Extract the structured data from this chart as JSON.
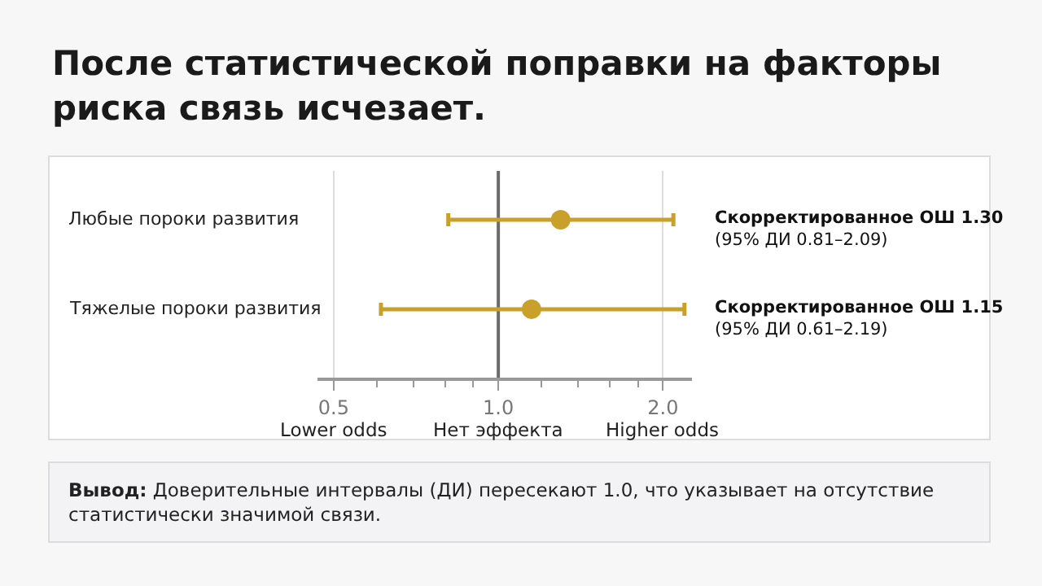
{
  "chart_data": {
    "type": "scatter",
    "orientation": "horizontal",
    "title": "После статистической поправки на факторы\nриска связь исчезает.",
    "categories": [
      "Любые пороки развития",
      "Тяжелые пороки развития"
    ],
    "values": [
      1.3,
      1.15
    ],
    "errors": [
      [
        0.81,
        2.09
      ],
      [
        0.61,
        2.19
      ]
    ],
    "color": "#c9a12a",
    "marker": "circle",
    "value_labels": [
      "Скорректированное ОШ 1.30\n(95% ДИ 0.81–2.09)",
      "Скорректированное ОШ 1.15\n(95% ДИ 0.61–2.19)"
    ],
    "log": "x",
    "xlim": [
      0.467,
      2.26
    ],
    "xticks": [
      0.5,
      {
        "value": 0.6,
        "label": null
      },
      {
        "value": 0.7,
        "label": null
      },
      {
        "value": 0.8,
        "label": null
      },
      {
        "value": 0.9,
        "label": null
      },
      {
        "value": 1,
        "label": "1.0"
      },
      {
        "value": 1.2,
        "label": null
      },
      {
        "value": 1.4,
        "label": null
      },
      {
        "value": 1.6,
        "label": null
      },
      {
        "value": 1.8,
        "label": null
      },
      {
        "value": 2,
        "label": "2.0"
      }
    ],
    "grid": "x",
    "ref_lines": [
      {
        "axis": "x",
        "value": 1,
        "color": "#6b6b6b"
      }
    ],
    "tick_labels": "x",
    "annotations": [
      "Lower odds",
      "Нет эффекта",
      "Higher odds",
      "Вывод: Доверительные интервалы (ДИ) пересекают 1.0, что указывает на отсутствие\nстатистически значимой связи."
    ]
  }
}
